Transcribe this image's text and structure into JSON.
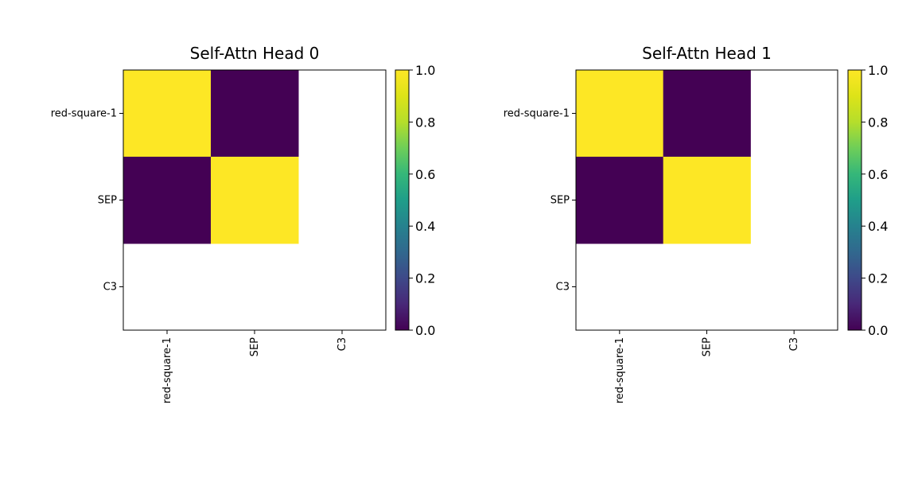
{
  "chart_data": [
    {
      "type": "heatmap",
      "title": "Self-Attn Head 0",
      "x_labels": [
        "red-square-1",
        "SEP",
        "C3"
      ],
      "y_labels": [
        "red-square-1",
        "SEP",
        "C3"
      ],
      "values": [
        [
          1.0,
          0.0,
          null
        ],
        [
          0.0,
          1.0,
          null
        ],
        [
          null,
          null,
          null
        ]
      ],
      "colorbar": {
        "min": 0.0,
        "max": 1.0,
        "ticks": [
          "0.0",
          "0.2",
          "0.4",
          "0.6",
          "0.8",
          "1.0"
        ],
        "colormap": "viridis"
      }
    },
    {
      "type": "heatmap",
      "title": "Self-Attn Head 1",
      "x_labels": [
        "red-square-1",
        "SEP",
        "C3"
      ],
      "y_labels": [
        "red-square-1",
        "SEP",
        "C3"
      ],
      "values": [
        [
          1.0,
          0.0,
          null
        ],
        [
          0.0,
          1.0,
          null
        ],
        [
          null,
          null,
          null
        ]
      ],
      "colorbar": {
        "min": 0.0,
        "max": 1.0,
        "ticks": [
          "0.0",
          "0.2",
          "0.4",
          "0.6",
          "0.8",
          "1.0"
        ],
        "colormap": "viridis"
      }
    }
  ]
}
